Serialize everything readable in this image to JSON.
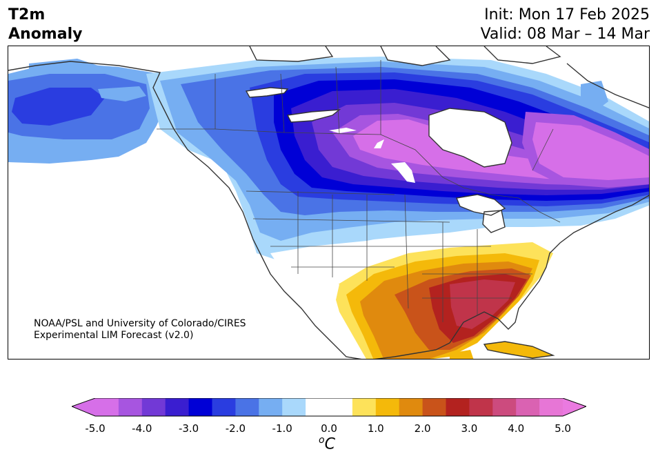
{
  "header": {
    "title_line1": "T2m",
    "title_line2": "Anomaly",
    "init_text": "Init: Mon 17 Feb 2025",
    "valid_text": "Valid: 08 Mar – 14 Mar"
  },
  "credit": {
    "line1": "NOAA/PSL and University of Colorado/CIRES",
    "line2": "Experimental LIM Forecast (v2.0)"
  },
  "colorbar": {
    "units_base": "C",
    "units_sup": "o",
    "ticks": [
      "-5.0",
      "-4.0",
      "-3.0",
      "-2.0",
      "-1.0",
      "0.0",
      "1.0",
      "2.0",
      "3.0",
      "4.0",
      "5.0"
    ],
    "colors": [
      "#d66fe8",
      "#a755e0",
      "#7239d6",
      "#3a1ed0",
      "#0000d6",
      "#2a3de0",
      "#4a73e6",
      "#76aef2",
      "#a9d8fb",
      "#ffffff",
      "#ffffff",
      "#fde25a",
      "#f4b90a",
      "#e08a0e",
      "#c9531a",
      "#b3221f",
      "#c0344a",
      "#cc4b7e",
      "#da62b2",
      "#e776d6"
    ],
    "under_color": "#d66fe8",
    "over_color": "#ea7ae0"
  },
  "map": {
    "land_outline_color": "#333333",
    "region": "North America"
  }
}
